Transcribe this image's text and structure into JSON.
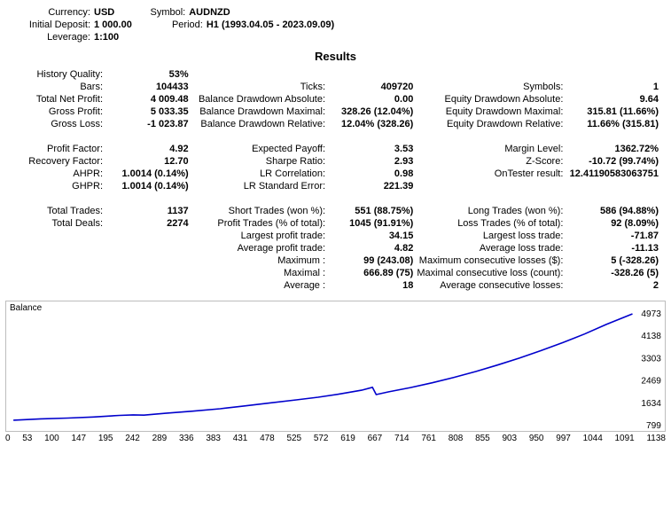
{
  "header": {
    "currency_label": "Currency:",
    "currency": "USD",
    "symbol_label": "Symbol:",
    "symbol": "AUDNZD",
    "initial_deposit_label": "Initial Deposit:",
    "initial_deposit": "1 000.00",
    "period_label": "Period:",
    "period": "H1 (1993.04.05 - 2023.09.09)",
    "leverage_label": "Leverage:",
    "leverage": "1:100"
  },
  "results_title": "Results",
  "rows": {
    "history_quality_l": "History Quality:",
    "history_quality_v": "53%",
    "bars_l": "Bars:",
    "bars_v": "104433",
    "ticks_l": "Ticks:",
    "ticks_v": "409720",
    "symbols_l": "Symbols:",
    "symbols_v": "1",
    "tnp_l": "Total Net Profit:",
    "tnp_v": "4 009.48",
    "bda_l": "Balance Drawdown Absolute:",
    "bda_v": "0.00",
    "eda_l": "Equity Drawdown Absolute:",
    "eda_v": "9.64",
    "gp_l": "Gross Profit:",
    "gp_v": "5 033.35",
    "bdm_l": "Balance Drawdown Maximal:",
    "bdm_v": "328.26 (12.04%)",
    "edm_l": "Equity Drawdown Maximal:",
    "edm_v": "315.81 (11.66%)",
    "gl_l": "Gross Loss:",
    "gl_v": "-1 023.87",
    "bdr_l": "Balance Drawdown Relative:",
    "bdr_v": "12.04% (328.26)",
    "edr_l": "Equity Drawdown Relative:",
    "edr_v": "11.66% (315.81)",
    "pf_l": "Profit Factor:",
    "pf_v": "4.92",
    "ep_l": "Expected Payoff:",
    "ep_v": "3.53",
    "ml_l": "Margin Level:",
    "ml_v": "1362.72%",
    "rf_l": "Recovery Factor:",
    "rf_v": "12.70",
    "sr_l": "Sharpe Ratio:",
    "sr_v": "2.93",
    "zs_l": "Z-Score:",
    "zs_v": "-10.72 (99.74%)",
    "ahpr_l": "AHPR:",
    "ahpr_v": "1.0014 (0.14%)",
    "lrc_l": "LR Correlation:",
    "lrc_v": "0.98",
    "otr_l": "OnTester result:",
    "otr_v": "12.41190583063751",
    "ghpr_l": "GHPR:",
    "ghpr_v": "1.0014 (0.14%)",
    "lrse_l": "LR Standard Error:",
    "lrse_v": "221.39",
    "tt_l": "Total Trades:",
    "tt_v": "1137",
    "st_l": "Short Trades (won %):",
    "st_v": "551 (88.75%)",
    "lt_l": "Long Trades (won %):",
    "lt_v": "586 (94.88%)",
    "td_l": "Total Deals:",
    "td_v": "2274",
    "pt_l": "Profit Trades (% of total):",
    "pt_v": "1045 (91.91%)",
    "losst_l": "Loss Trades (% of total):",
    "losst_v": "92 (8.09%)",
    "lpt_l": "Largest profit trade:",
    "lpt_v": "34.15",
    "llt_l": "Largest loss trade:",
    "llt_v": "-71.87",
    "apt_l": "Average profit trade:",
    "apt_v": "4.82",
    "alt_l": "Average loss trade:",
    "alt_v": "-11.13",
    "maxw_l": "Maximum :",
    "maxw_v": "99 (243.08)",
    "mcl_l": "Maximum consecutive losses ($):",
    "mcl_v": "5 (-328.26)",
    "maxl_l": "Maximal :",
    "maxl_v": "666.89 (75)",
    "mclc_l": "Maximal consecutive loss (count):",
    "mclc_v": "-328.26 (5)",
    "avg_l": "Average :",
    "avg_v": "18",
    "acl_l": "Average consecutive losses:",
    "acl_v": "2"
  },
  "chart": {
    "label": "Balance",
    "type": "line",
    "line_color": "#0000cc",
    "border_color": "#bdbdbd",
    "background_color": "#ffffff",
    "xlim": [
      0,
      1138
    ],
    "ylim": [
      799,
      4973
    ],
    "x_ticks": [
      "0",
      "53",
      "100",
      "147",
      "195",
      "242",
      "289",
      "336",
      "383",
      "431",
      "478",
      "525",
      "572",
      "619",
      "667",
      "714",
      "761",
      "808",
      "855",
      "903",
      "950",
      "997",
      "1044",
      "1091",
      "1138"
    ],
    "y_ticks": [
      "4973",
      "4138",
      "3303",
      "2469",
      "1634",
      "799"
    ],
    "points": [
      [
        0,
        1000
      ],
      [
        50,
        1050
      ],
      [
        100,
        1080
      ],
      [
        147,
        1120
      ],
      [
        195,
        1180
      ],
      [
        220,
        1200
      ],
      [
        240,
        1190
      ],
      [
        280,
        1260
      ],
      [
        330,
        1340
      ],
      [
        380,
        1430
      ],
      [
        420,
        1520
      ],
      [
        470,
        1640
      ],
      [
        520,
        1760
      ],
      [
        560,
        1860
      ],
      [
        600,
        1980
      ],
      [
        640,
        2120
      ],
      [
        660,
        2230
      ],
      [
        667,
        1960
      ],
      [
        690,
        2060
      ],
      [
        730,
        2220
      ],
      [
        770,
        2400
      ],
      [
        810,
        2600
      ],
      [
        850,
        2820
      ],
      [
        890,
        3060
      ],
      [
        930,
        3320
      ],
      [
        970,
        3600
      ],
      [
        1010,
        3900
      ],
      [
        1050,
        4220
      ],
      [
        1090,
        4580
      ],
      [
        1138,
        4973
      ]
    ]
  }
}
